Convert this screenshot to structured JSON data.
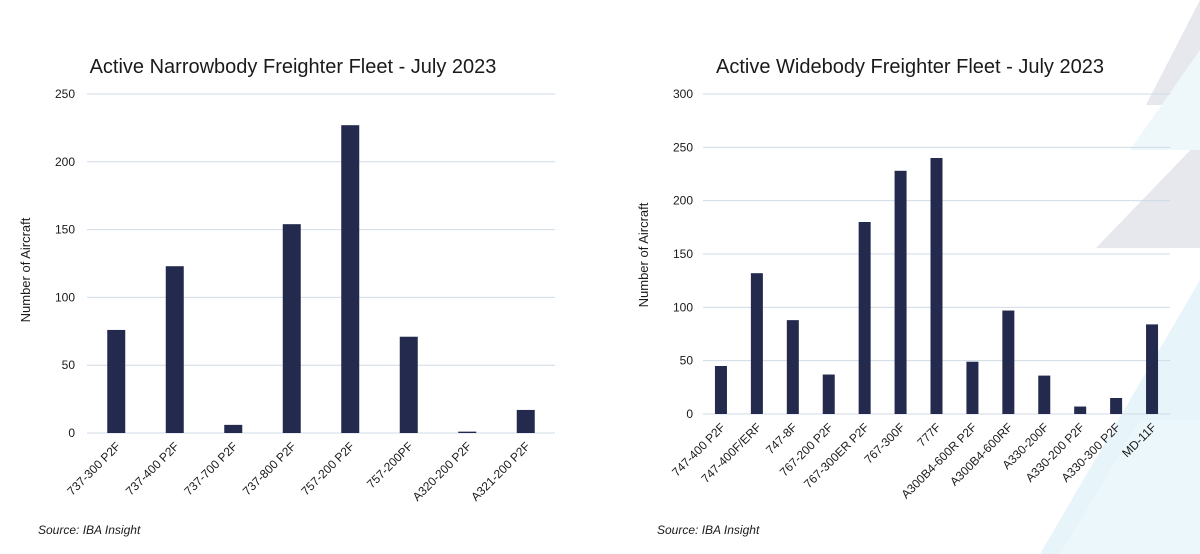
{
  "colors": {
    "bar": "#232a4d",
    "grid": "#cfdbe6",
    "deco_gray": "#e6e8ee",
    "deco_blue": "#e7f5fa"
  },
  "chart_data": [
    {
      "type": "bar",
      "title": "Active Narrowbody Freighter Fleet - July 2023",
      "xlabel": "",
      "ylabel": "Number of Aircraft",
      "ylim": [
        0,
        250
      ],
      "yticks": [
        0,
        50,
        100,
        150,
        200,
        250
      ],
      "grid": true,
      "categories": [
        "737-300 P2F",
        "737-400 P2F",
        "737-700 P2F",
        "737-800 P2F",
        "757-200 P2F",
        "757-200PF",
        "A320-200 P2F",
        "A321-200 P2F"
      ],
      "values": [
        76,
        123,
        6,
        154,
        227,
        71,
        1,
        17
      ],
      "source": "Source: IBA Insight"
    },
    {
      "type": "bar",
      "title": "Active Widebody Freighter Fleet - July 2023",
      "xlabel": "",
      "ylabel": "Number of Aircraft",
      "ylim": [
        0,
        300
      ],
      "yticks": [
        0,
        50,
        100,
        150,
        200,
        250,
        300
      ],
      "grid": true,
      "categories": [
        "747-400 P2F",
        "747-400F/ERF",
        "747-8F",
        "767-200 P2F",
        "767-300ER P2F",
        "767-300F",
        "777F",
        "A300B4-600R P2F",
        "A300B4-600RF",
        "A330-200F",
        "A330-200 P2F",
        "A330-300 P2F",
        "MD-11F"
      ],
      "values": [
        45,
        132,
        88,
        37,
        180,
        228,
        240,
        49,
        97,
        36,
        7,
        15,
        84
      ],
      "source": "Source: IBA Insight"
    }
  ]
}
